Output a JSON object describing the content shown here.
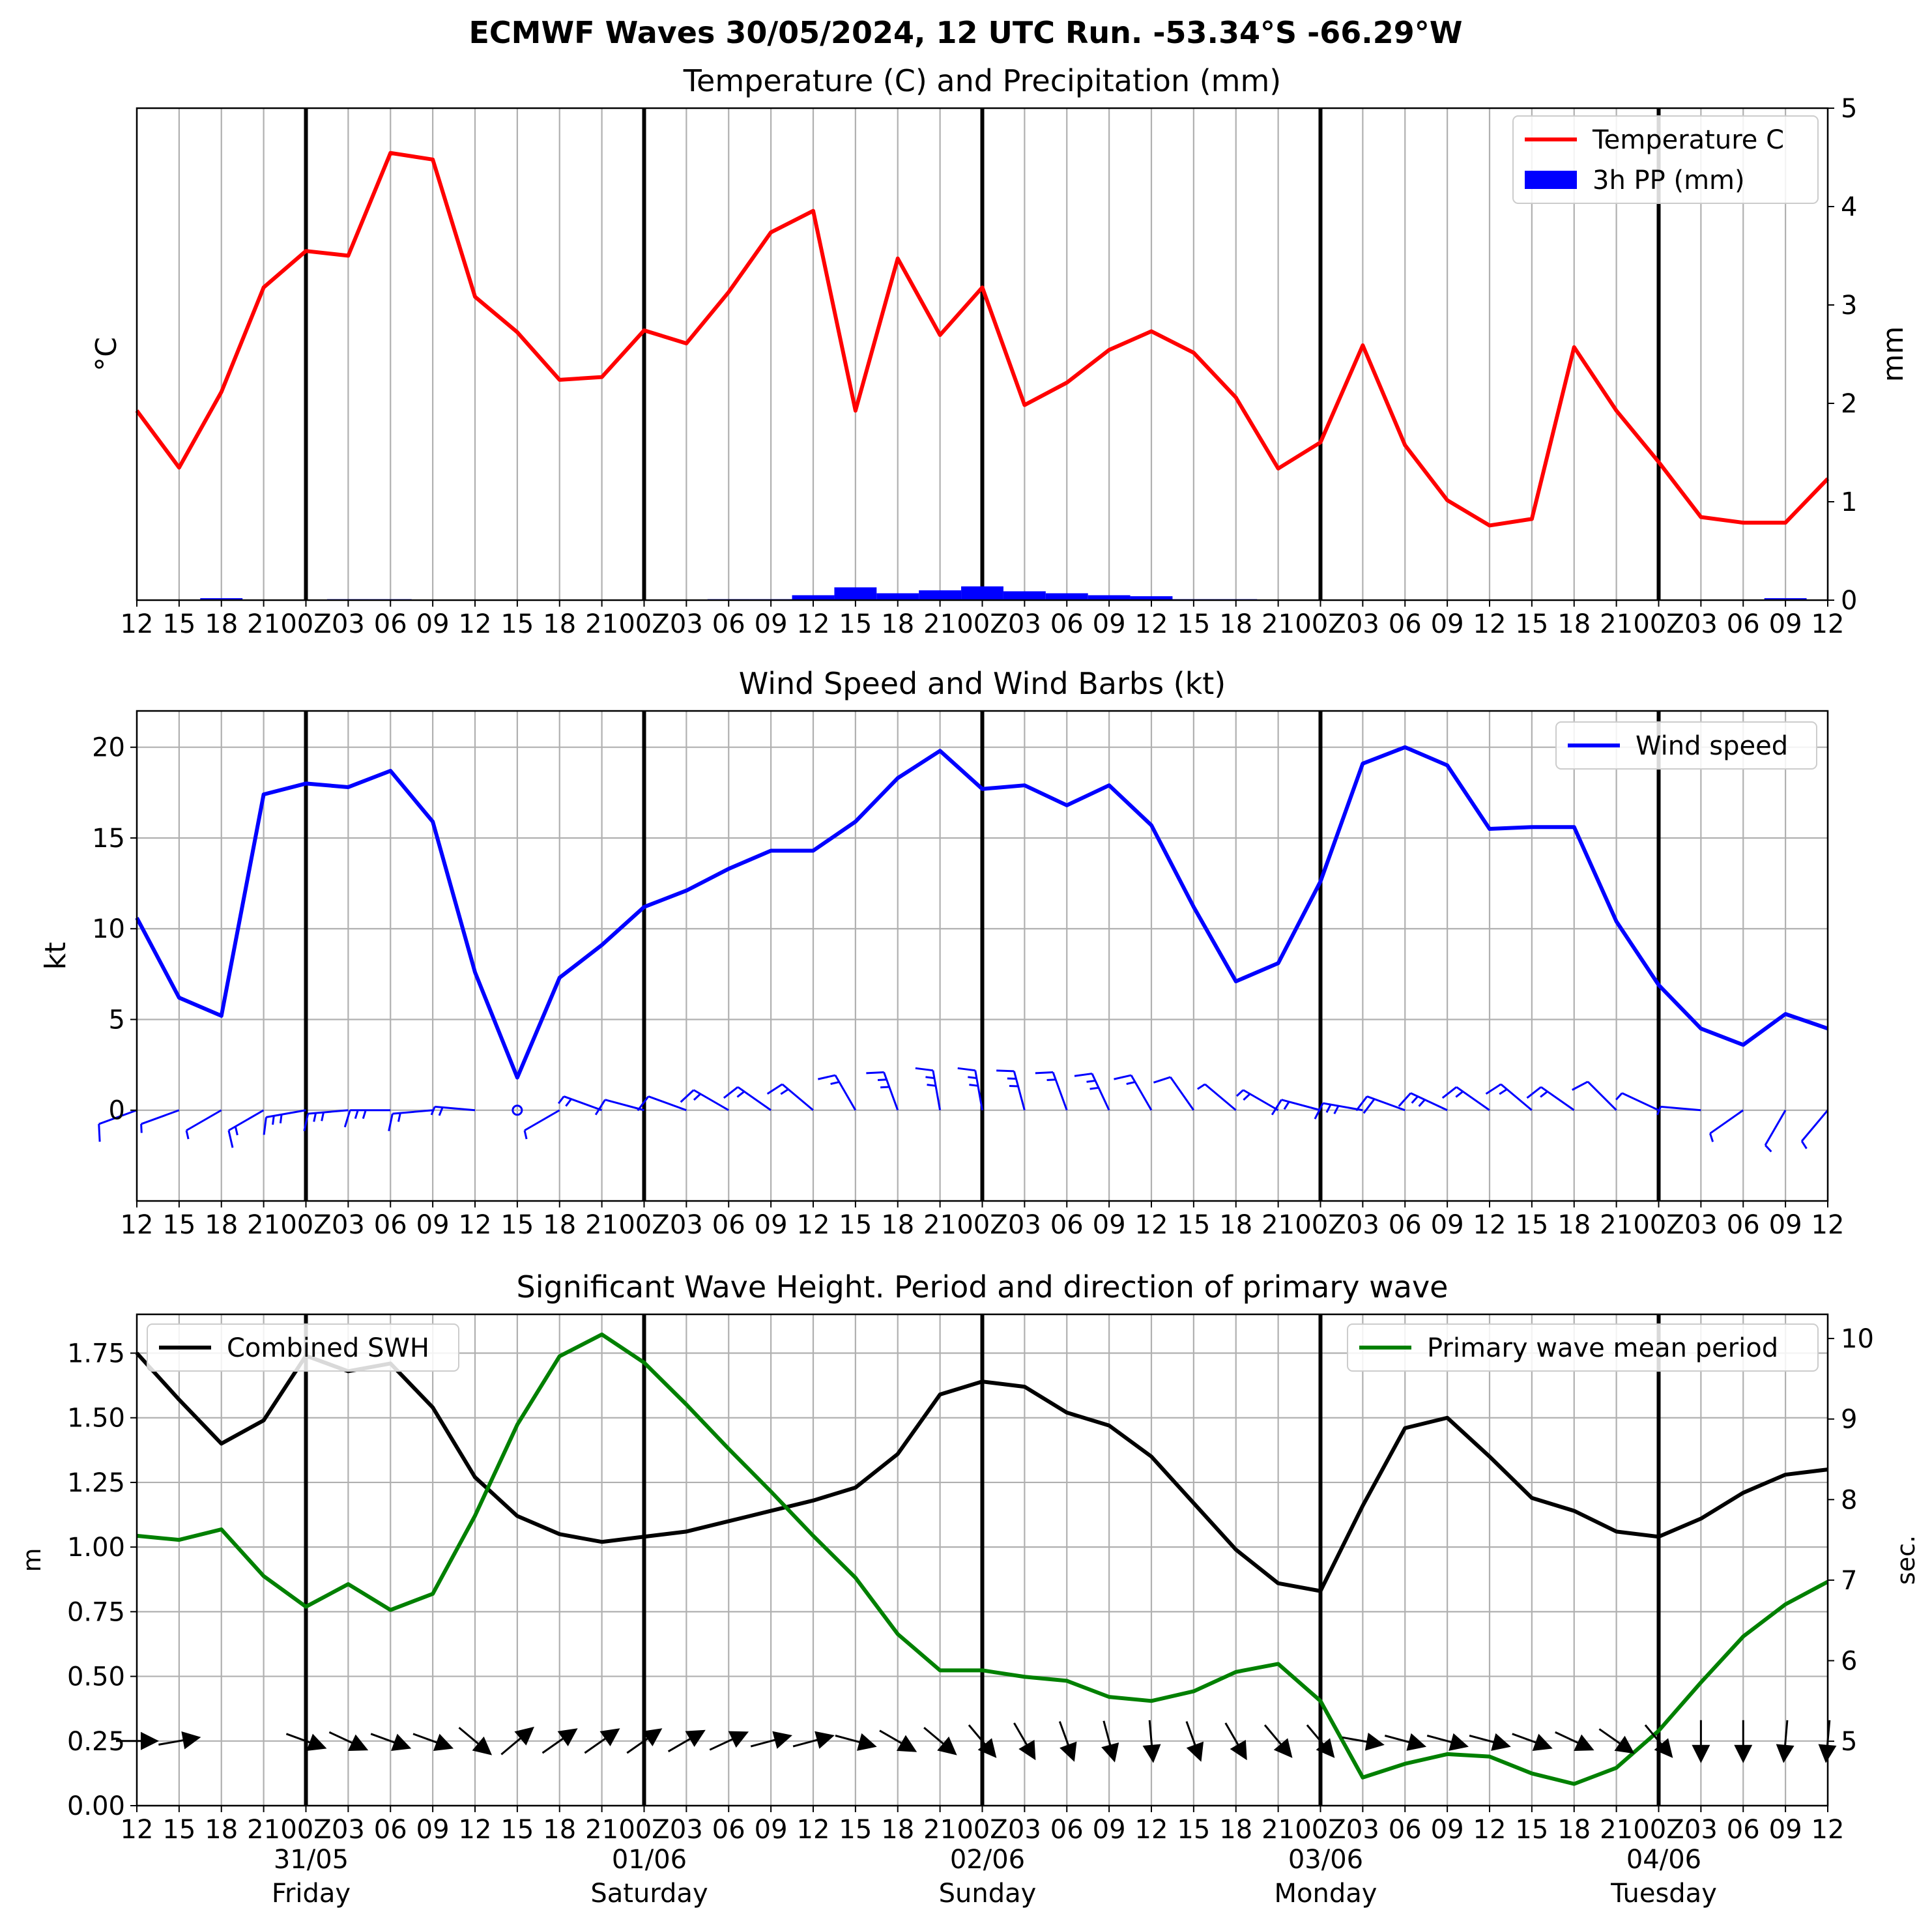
{
  "suptitle": "ECMWF Waves 30/05/2024, 12 UTC Run. -53.34°S -66.29°W",
  "hour_labels": [
    "12",
    "15",
    "18",
    "21",
    "00Z",
    "03",
    "06",
    "09",
    "12",
    "15",
    "18",
    "21",
    "00Z",
    "03",
    "06",
    "09",
    "12",
    "15",
    "18",
    "21",
    "00Z",
    "03",
    "06",
    "09",
    "12",
    "15",
    "18",
    "21",
    "00Z",
    "03",
    "06",
    "09",
    "12",
    "15",
    "18",
    "21",
    "00Z",
    "03",
    "06",
    "09",
    "12"
  ],
  "day_labels": [
    {
      "date": "31/05",
      "weekday": "Friday"
    },
    {
      "date": "01/06",
      "weekday": "Saturday"
    },
    {
      "date": "02/06",
      "weekday": "Sunday"
    },
    {
      "date": "03/06",
      "weekday": "Monday"
    },
    {
      "date": "04/06",
      "weekday": "Tuesday"
    }
  ],
  "colors": {
    "temperature": "#ff0000",
    "precip": "#0000ff",
    "wind": "#0000ff",
    "swh": "#000000",
    "period": "#008000",
    "grid": "#b0b0b0"
  },
  "chart_data": [
    {
      "type": "line",
      "title": "Temperature (C) and Precipitation (mm)",
      "ylabel": "°C",
      "ylabel_right": "mm",
      "ylim_right": [
        0,
        5
      ],
      "legend": [
        "Temperature C",
        "3h PP (mm)"
      ],
      "legend_position": "top-right",
      "grid": true,
      "series": [
        {
          "name": "Temperature C",
          "values": [
            1.73,
            1.12,
            1.93,
            3.05,
            3.44,
            3.39,
            4.49,
            4.42,
            2.95,
            2.57,
            2.06,
            2.09,
            2.59,
            2.45,
            3.0,
            3.64,
            3.87,
            1.73,
            3.36,
            2.54,
            3.05,
            1.79,
            2.03,
            2.38,
            2.58,
            2.35,
            1.87,
            1.11,
            1.39,
            2.43,
            1.36,
            0.77,
            0.5,
            0.57,
            2.41,
            1.73,
            1.18,
            0.59,
            0.53,
            0.53,
            1.0
          ]
        },
        {
          "name": "3h PP (mm)",
          "values": [
            0,
            0,
            0.02,
            0,
            0,
            0.01,
            0.01,
            0,
            0,
            0,
            0,
            0,
            0,
            0,
            0.01,
            0.01,
            0.05,
            0.13,
            0.07,
            0.1,
            0.14,
            0.09,
            0.07,
            0.05,
            0.04,
            0.01,
            0.01,
            0,
            0,
            0,
            0,
            0,
            0,
            0,
            0,
            0,
            0,
            0,
            0,
            0.02,
            0
          ]
        }
      ],
      "temp_range_display": [
        -0.3,
        4.97
      ]
    },
    {
      "type": "line",
      "title": "Wind Speed and Wind Barbs (kt)",
      "ylabel": "kt",
      "ylim": [
        -5,
        22
      ],
      "yticks": [
        0,
        5,
        10,
        15,
        20
      ],
      "legend": [
        "Wind speed"
      ],
      "legend_position": "top-right",
      "grid": true,
      "series": [
        {
          "name": "Wind speed",
          "values": [
            10.6,
            6.2,
            5.2,
            17.4,
            18.0,
            17.8,
            18.7,
            15.9,
            7.6,
            1.8,
            7.3,
            9.1,
            11.2,
            12.1,
            13.3,
            14.3,
            14.3,
            15.9,
            18.3,
            19.8,
            17.7,
            17.9,
            16.8,
            17.9,
            15.7,
            11.2,
            7.1,
            8.1,
            12.6,
            19.1,
            20.0,
            19.0,
            15.5,
            15.6,
            15.6,
            10.4,
            6.9,
            4.5,
            3.6,
            5.3,
            4.5
          ]
        }
      ],
      "barb_directions_deg": [
        290,
        290,
        300,
        300,
        280,
        275,
        270,
        275,
        265,
        0,
        300,
        250,
        255,
        250,
        240,
        235,
        230,
        210,
        200,
        190,
        190,
        195,
        200,
        205,
        210,
        215,
        230,
        240,
        255,
        260,
        250,
        245,
        235,
        230,
        235,
        225,
        245,
        265,
        305,
        330,
        320
      ]
    },
    {
      "type": "line",
      "title": "Significant Wave Height. Period and direction of primary wave",
      "ylabel": "m",
      "ylabel_right": "sec.",
      "ylim": [
        0,
        1.9
      ],
      "yticks": [
        0.0,
        0.25,
        0.5,
        0.75,
        1.0,
        1.25,
        1.5,
        1.75
      ],
      "ylim_right": [
        4.2,
        10.3
      ],
      "yticks_right": [
        5,
        6,
        7,
        8,
        9,
        10
      ],
      "legend": [
        "Combined SWH",
        "Primary wave mean period"
      ],
      "grid": true,
      "series": [
        {
          "name": "Combined SWH",
          "values": [
            1.75,
            1.57,
            1.4,
            1.49,
            1.74,
            1.68,
            1.71,
            1.54,
            1.27,
            1.12,
            1.05,
            1.02,
            1.04,
            1.06,
            1.1,
            1.14,
            1.18,
            1.23,
            1.36,
            1.59,
            1.64,
            1.62,
            1.52,
            1.47,
            1.35,
            1.17,
            0.99,
            0.86,
            0.83,
            1.16,
            1.46,
            1.5,
            1.35,
            1.19,
            1.14,
            1.06,
            1.04,
            1.11,
            1.21,
            1.28,
            1.3
          ]
        },
        {
          "name": "Primary wave mean period",
          "values": [
            7.55,
            7.5,
            7.63,
            7.05,
            6.67,
            6.95,
            6.63,
            6.83,
            7.8,
            8.93,
            9.78,
            10.05,
            9.7,
            9.18,
            8.63,
            8.1,
            7.55,
            7.03,
            6.33,
            5.88,
            5.88,
            5.8,
            5.75,
            5.55,
            5.5,
            5.62,
            5.86,
            5.96,
            5.5,
            4.55,
            4.72,
            4.84,
            4.81,
            4.6,
            4.47,
            4.67,
            5.13,
            5.73,
            6.3,
            6.7,
            6.98
          ]
        }
      ],
      "wave_arrow_directions_deg": [
        90,
        80,
        null,
        null,
        110,
        115,
        110,
        110,
        130,
        50,
        55,
        55,
        55,
        60,
        65,
        75,
        75,
        105,
        120,
        130,
        140,
        150,
        160,
        165,
        175,
        160,
        150,
        140,
        140,
        100,
        105,
        105,
        105,
        110,
        115,
        125,
        140,
        180,
        180,
        185,
        185
      ]
    }
  ]
}
